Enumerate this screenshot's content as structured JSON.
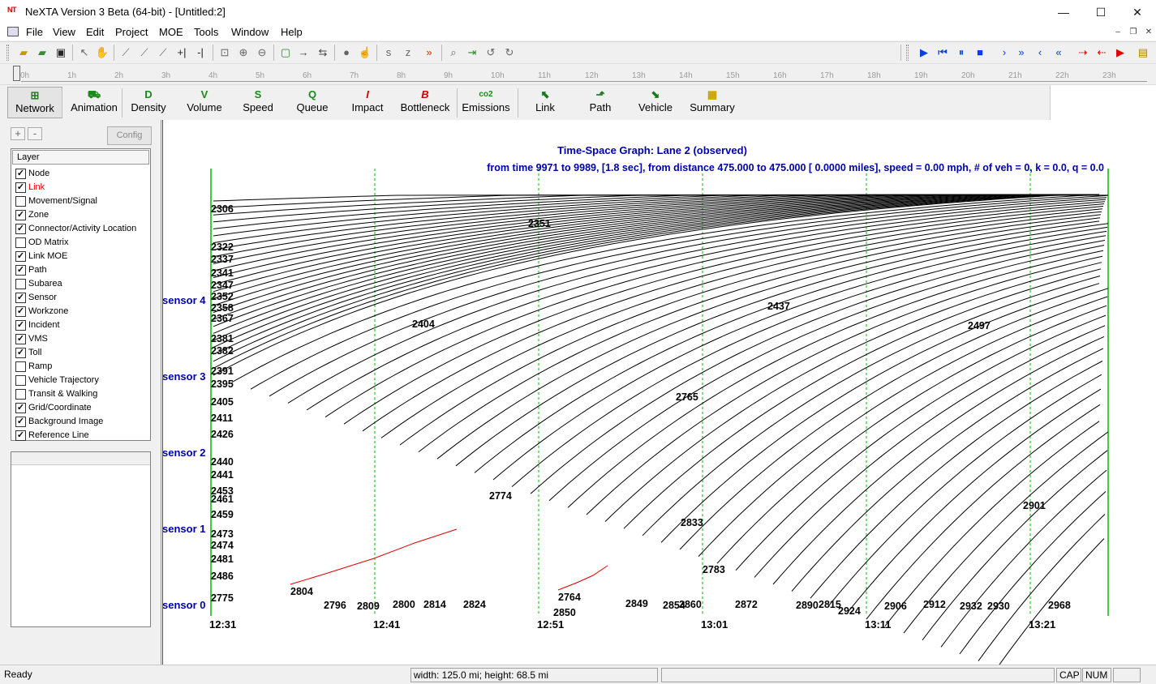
{
  "window": {
    "icon": "NT",
    "title": "NeXTA Version 3 Beta (64-bit) - [Untitled:2]",
    "minimize_glyph": "—",
    "maximize_glyph": "☐",
    "close_glyph": "✕"
  },
  "menu": {
    "items": [
      "File",
      "View",
      "Edit",
      "Project",
      "MOE",
      "Tools",
      "Window",
      "Help"
    ],
    "mdi_minimize": "–",
    "mdi_restore": "❐",
    "mdi_close": "✕"
  },
  "toolbar": {
    "icons": [
      "open-folder-icon",
      "open-project-icon",
      "save-icon",
      "select-arrow-icon",
      "pan-hand-icon",
      "draw-link-icon",
      "draw-link2-icon",
      "draw-link3-icon",
      "split-link-icon",
      "split-link2-icon",
      "zoom-extent-icon",
      "zoom-in-icon",
      "zoom-out-icon",
      "add-node-icon",
      "arrow-right-icon",
      "bidirectional-arrow-icon",
      "move-node-icon",
      "hand-icon",
      "node-a-icon",
      "node-b-icon",
      "chevron-right-icon",
      "search-icon",
      "export-icon",
      "undo-icon",
      "redo-icon"
    ],
    "playback_icons": [
      "play-icon",
      "rewind-icon",
      "pause-icon",
      "stop-icon",
      "step-forward-icon",
      "fast-forward-icon",
      "step-back-icon",
      "fast-back-icon",
      "red-step-forward-icon",
      "red-step-back-icon",
      "red-play-icon",
      "exit-icon"
    ]
  },
  "timeline": {
    "labels": [
      "0h",
      "1h",
      "2h",
      "3h",
      "4h",
      "5h",
      "6h",
      "7h",
      "8h",
      "9h",
      "10h",
      "11h",
      "12h",
      "13h",
      "14h",
      "15h",
      "16h",
      "17h",
      "18h",
      "19h",
      "20h",
      "21h",
      "22h",
      "23h"
    ]
  },
  "modes": [
    {
      "label": "Network",
      "icon": "network-icon",
      "glyph": "⊞",
      "color": "#2a7a2a",
      "active": true
    },
    {
      "label": "Animation",
      "icon": "car-icon",
      "glyph": "⛟",
      "color": "#1a8a1a"
    },
    {
      "label": "Density",
      "icon": "density-icon",
      "glyph": "D",
      "color": "#1a8a1a"
    },
    {
      "label": "Volume",
      "icon": "volume-icon",
      "glyph": "V",
      "color": "#1a8a1a"
    },
    {
      "label": "Speed",
      "icon": "speed-icon",
      "glyph": "S",
      "color": "#1a8a1a"
    },
    {
      "label": "Queue",
      "icon": "queue-icon",
      "glyph": "Q",
      "color": "#1a8a1a"
    },
    {
      "label": "Impact",
      "icon": "impact-icon",
      "glyph": "I",
      "color": "#cc0000"
    },
    {
      "label": "Bottleneck",
      "icon": "bottleneck-icon",
      "glyph": "B",
      "color": "#cc0000"
    },
    {
      "label": "Emissions",
      "icon": "co2-icon",
      "glyph": "co2",
      "color": "#1a8a1a"
    },
    {
      "label": "Link",
      "icon": "link-icon",
      "glyph": "⬉",
      "color": "#1a7a1a"
    },
    {
      "label": "Path",
      "icon": "path-icon",
      "glyph": "⬏",
      "color": "#1a7a1a"
    },
    {
      "label": "Vehicle",
      "icon": "vehicle-icon",
      "glyph": "⬊",
      "color": "#1a7a1a"
    },
    {
      "label": "Summary",
      "icon": "summary-icon",
      "glyph": "▦",
      "color": "#c8a000"
    }
  ],
  "left_panel": {
    "plus": "+",
    "minus": "-",
    "config": "Config",
    "layer_header": "Layer",
    "layers": [
      {
        "label": "Node",
        "checked": true
      },
      {
        "label": "Link",
        "checked": true,
        "highlight": true
      },
      {
        "label": "Movement/Signal",
        "checked": false
      },
      {
        "label": "Zone",
        "checked": true
      },
      {
        "label": "Connector/Activity Location",
        "checked": true
      },
      {
        "label": "OD Matrix",
        "checked": false
      },
      {
        "label": "Link MOE",
        "checked": true
      },
      {
        "label": "Path",
        "checked": true
      },
      {
        "label": "Subarea",
        "checked": false
      },
      {
        "label": "Sensor",
        "checked": true
      },
      {
        "label": "Workzone",
        "checked": true
      },
      {
        "label": "Incident",
        "checked": true
      },
      {
        "label": "VMS",
        "checked": true
      },
      {
        "label": "Toll",
        "checked": true
      },
      {
        "label": "Ramp",
        "checked": false
      },
      {
        "label": "Vehicle Trajectory",
        "checked": false
      },
      {
        "label": "Transit & Walking",
        "checked": false
      },
      {
        "label": "Grid/Coordinate",
        "checked": true
      },
      {
        "label": "Background Image",
        "checked": true
      },
      {
        "label": "Reference Line",
        "checked": true
      }
    ]
  },
  "graph": {
    "title": "Time-Space Graph: Lane 2 (observed)",
    "subtitle": "from time 9971 to 9989, [1.8 sec], from distance  475.000 to  475.000 [  0.0000 miles], speed =  0.00 mph, # of veh = 0, k =   0.0, q =   0.0",
    "sensors": [
      "sensor 4",
      "sensor 3",
      "sensor 2",
      "sensor 1",
      "sensor 0"
    ],
    "time_labels": [
      "12:31",
      "12:41",
      "12:51",
      "13:01",
      "13:11",
      "13:21"
    ],
    "trajectory_ids": [
      "2306",
      "2322",
      "2337",
      "2341",
      "2347",
      "2352",
      "2358",
      "2367",
      "2381",
      "2382",
      "2391",
      "2395",
      "2405",
      "2411",
      "2426",
      "2440",
      "2441",
      "2453",
      "2461",
      "2459",
      "2473",
      "2474",
      "2481",
      "2486",
      "2775"
    ],
    "bottom_ids": [
      "2804",
      "2796",
      "2809",
      "2800",
      "2814",
      "2824",
      "2764",
      "2850",
      "2849",
      "2854",
      "2860",
      "2872",
      "2890",
      "2815",
      "2924",
      "2906",
      "2912",
      "2932",
      "2930",
      "2968"
    ],
    "interior_ids": [
      "2351",
      "2404",
      "2437",
      "2497",
      "2765",
      "2774",
      "2833",
      "2783",
      "2901"
    ],
    "colors": {
      "title": "#0000aa",
      "sensor": "#0000aa",
      "trajectory": "#000000",
      "highlight": "#dd0000",
      "grid": "#00bb00"
    }
  },
  "status": {
    "ready": "Ready",
    "dimensions": "width: 125.0 mi; height: 68.5 mi",
    "cap": "CAP",
    "num": "NUM"
  }
}
